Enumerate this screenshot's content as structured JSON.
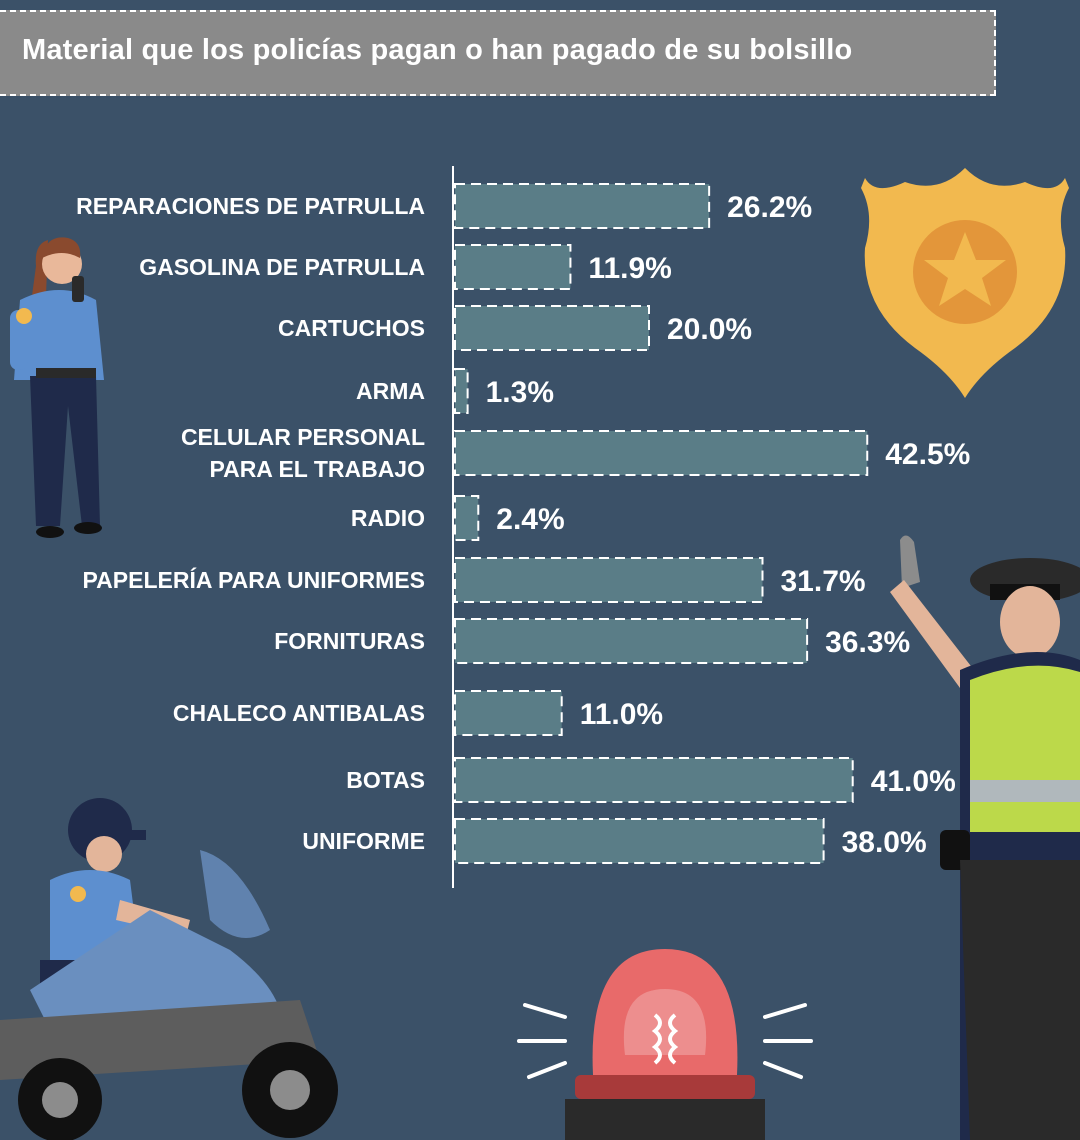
{
  "title": "Material que los policías pagan o han pagado de su bolsillo",
  "chart_data": {
    "type": "bar",
    "orientation": "horizontal",
    "categories": [
      "REPARACIONES DE PATRULLA",
      "GASOLINA DE PATRULLA",
      "CARTUCHOS",
      "ARMA",
      "CELULAR PERSONAL PARA EL TRABAJO",
      "RADIO",
      "PAPELERÍA PARA UNIFORMES",
      "FORNITURAS",
      "CHALECO ANTIBALAS",
      "BOTAS",
      "UNIFORME"
    ],
    "category_lines": [
      [
        "REPARACIONES DE PATRULLA"
      ],
      [
        "GASOLINA DE PATRULLA"
      ],
      [
        "CARTUCHOS"
      ],
      [
        "ARMA"
      ],
      [
        "CELULAR PERSONAL",
        "PARA EL TRABAJO"
      ],
      [
        "RADIO"
      ],
      [
        "PAPELERÍA PARA UNIFORMES"
      ],
      [
        "FORNITURAS"
      ],
      [
        "CHALECO ANTIBALAS"
      ],
      [
        "BOTAS"
      ],
      [
        "UNIFORME"
      ]
    ],
    "values": [
      26.2,
      11.9,
      20.0,
      1.3,
      42.5,
      2.4,
      31.7,
      36.3,
      11.0,
      41.0,
      38.0
    ],
    "value_labels": [
      "26.2%",
      "11.9%",
      "20.0%",
      "1.3%",
      "42.5%",
      "2.4%",
      "31.7%",
      "36.3%",
      "11.0%",
      "41.0%",
      "38.0%"
    ],
    "unit": "%",
    "xlim": [
      0,
      100
    ],
    "grid": false,
    "legend": "none"
  },
  "colors": {
    "background": "#3b5168",
    "title_bar": "#8a8a8a",
    "bar_fill": "#5a7d87",
    "bar_border": "#ffffff",
    "text": "#ffffff",
    "badge_gold": "#f2b94f"
  },
  "icons": [
    "policewoman-radio-icon",
    "police-badge-icon",
    "traffic-officer-icon",
    "motorcycle-officer-icon",
    "siren-light-icon"
  ]
}
